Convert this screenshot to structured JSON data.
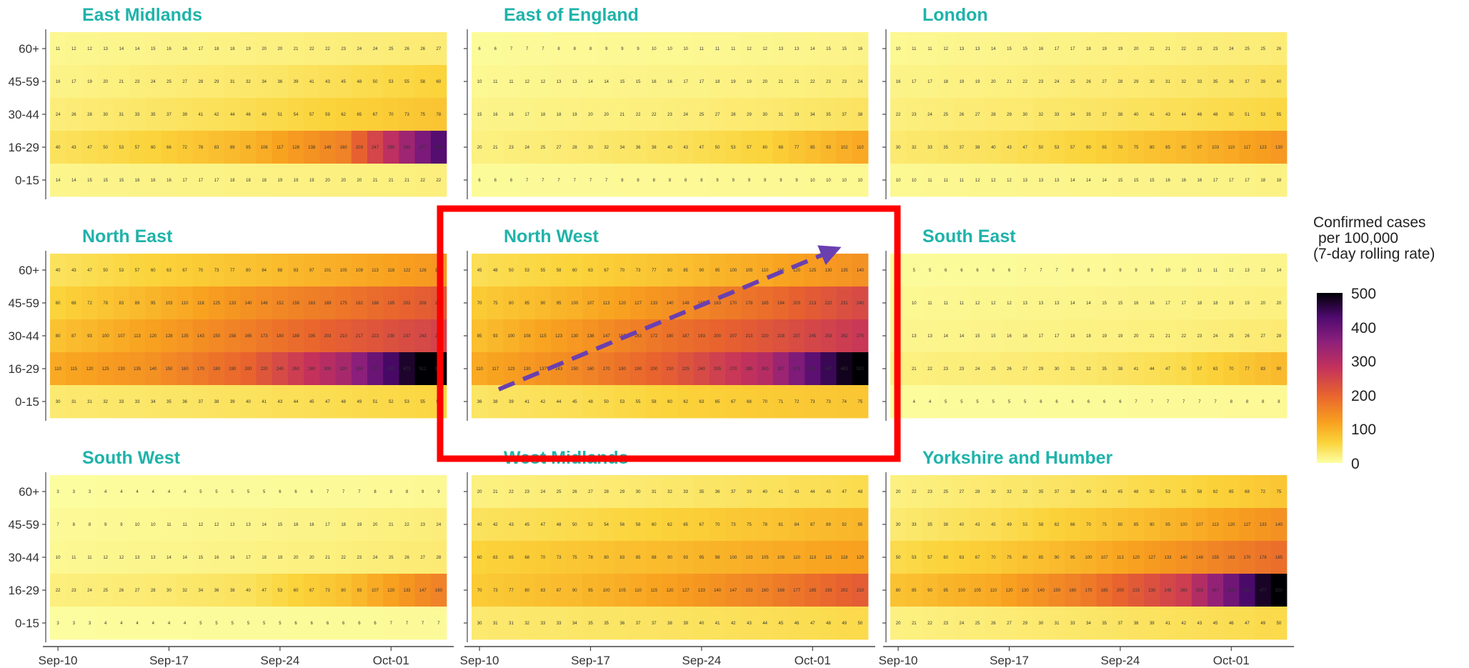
{
  "chart_data": {
    "type": "heatmap",
    "title": "",
    "x_ticks": [
      "Sep-10",
      "Sep-17",
      "Sep-24",
      "Oct-01"
    ],
    "age_groups": [
      "60+",
      "45-59",
      "30-44",
      "16-29",
      "0-15"
    ],
    "colorbar": {
      "title_lines": [
        "Confirmed cases",
        "per 100,000",
        "(7-day rolling rate)"
      ],
      "ticks": [
        "500",
        "400",
        "300",
        "200",
        "100",
        "0"
      ],
      "range": [
        0,
        500
      ]
    },
    "title_color": "#1fb3aa",
    "highlight_color": "#ff0000",
    "arrow_color": "#6a3fb0",
    "highlighted_panel": "North West",
    "panels": [
      {
        "name": "East Midlands",
        "series": {
          "60+": [
            11,
            15,
            19,
            23,
            27
          ],
          "45-59": [
            16,
            24,
            32,
            45,
            60
          ],
          "30-44": [
            24,
            35,
            46,
            62,
            78
          ],
          "16-29": [
            40,
            60,
            95,
            160,
            420
          ],
          "0-15": [
            14,
            16,
            18,
            20,
            22
          ]
        }
      },
      {
        "name": "East of England",
        "series": {
          "60+": [
            6,
            8,
            10,
            12,
            16
          ],
          "45-59": [
            10,
            13,
            16,
            20,
            24
          ],
          "30-44": [
            15,
            19,
            23,
            30,
            38
          ],
          "16-29": [
            20,
            28,
            40,
            60,
            110
          ],
          "0-15": [
            6,
            7,
            8,
            9,
            10
          ]
        }
      },
      {
        "name": "London",
        "series": {
          "60+": [
            10,
            14,
            18,
            22,
            26
          ],
          "45-59": [
            16,
            20,
            26,
            32,
            40
          ],
          "30-44": [
            22,
            28,
            35,
            44,
            55
          ],
          "16-29": [
            30,
            40,
            60,
            90,
            130
          ],
          "0-15": [
            10,
            12,
            14,
            16,
            18
          ]
        }
      },
      {
        "name": "North East",
        "series": {
          "60+": [
            40,
            60,
            80,
            105,
            130
          ],
          "45-59": [
            60,
            95,
            140,
            175,
            215
          ],
          "30-44": [
            80,
            120,
            165,
            210,
            250
          ],
          "16-29": [
            110,
            140,
            200,
            320,
            550
          ],
          "0-15": [
            30,
            34,
            40,
            48,
            56
          ]
        }
      },
      {
        "name": "North West",
        "series": {
          "60+": [
            45,
            60,
            80,
            110,
            140
          ],
          "45-59": [
            70,
            100,
            140,
            185,
            240
          ],
          "30-44": [
            85,
            130,
            180,
            220,
            270
          ],
          "16-29": [
            110,
            150,
            210,
            300,
            520
          ],
          "0-15": [
            36,
            45,
            60,
            70,
            75
          ]
        }
      },
      {
        "name": "South East",
        "series": {
          "60+": [
            5,
            6,
            8,
            10,
            14
          ],
          "45-59": [
            10,
            12,
            14,
            17,
            20
          ],
          "30-44": [
            12,
            15,
            18,
            22,
            28
          ],
          "16-29": [
            20,
            25,
            32,
            50,
            90
          ],
          "0-15": [
            4,
            5,
            6,
            7,
            8
          ]
        }
      },
      {
        "name": "South West",
        "series": {
          "60+": [
            3,
            4,
            5,
            7,
            9
          ],
          "45-59": [
            7,
            10,
            13,
            18,
            24
          ],
          "30-44": [
            10,
            13,
            17,
            22,
            28
          ],
          "16-29": [
            22,
            28,
            40,
            80,
            160
          ],
          "0-15": [
            3,
            4,
            5,
            6,
            7
          ]
        }
      },
      {
        "name": "West Midlands",
        "series": {
          "60+": [
            20,
            26,
            32,
            40,
            48
          ],
          "45-59": [
            40,
            50,
            62,
            78,
            95
          ],
          "30-44": [
            60,
            75,
            90,
            105,
            120
          ],
          "16-29": [
            70,
            90,
            120,
            160,
            210
          ],
          "0-15": [
            30,
            34,
            38,
            44,
            50
          ]
        }
      },
      {
        "name": "Yorkshire and Humber",
        "series": {
          "60+": [
            20,
            30,
            40,
            55,
            75
          ],
          "45-59": [
            30,
            45,
            70,
            100,
            140
          ],
          "30-44": [
            50,
            70,
            100,
            140,
            185
          ],
          "16-29": [
            80,
            110,
            170,
            260,
            520
          ],
          "0-15": [
            20,
            26,
            34,
            42,
            50
          ]
        }
      }
    ]
  }
}
